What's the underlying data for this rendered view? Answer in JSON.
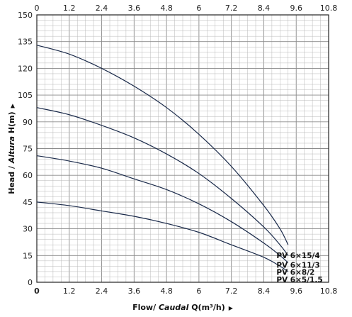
{
  "chart_data": {
    "type": "line",
    "title": "",
    "xlabel_prefix": "Flow/ ",
    "xlabel_italic": "Caudal",
    "xlabel_suffix": " Q(m³/h)",
    "ylabel_prefix": "Head / ",
    "ylabel_italic": "Altura",
    "ylabel_suffix": " H(m)",
    "arrow_glyph": "▶",
    "xlim": [
      0,
      10.8
    ],
    "ylim": [
      0,
      150
    ],
    "x_ticks": [
      "0",
      "1.2",
      "2.4",
      "3.6",
      "4.8",
      "6",
      "7.2",
      "8.4",
      "9.6",
      "10.8"
    ],
    "y_ticks": [
      "0",
      "15",
      "30",
      "45",
      "60",
      "75",
      "90",
      "105",
      "120",
      "135",
      "150"
    ],
    "x_tick_values": [
      0,
      1.2,
      2.4,
      3.6,
      4.8,
      6,
      7.2,
      8.4,
      9.6,
      10.8
    ],
    "y_tick_values": [
      0,
      15,
      30,
      45,
      60,
      75,
      90,
      105,
      120,
      135,
      150
    ],
    "grid": true,
    "grid_minor_x": 0.3,
    "grid_minor_y": 3,
    "curve_color": "#1a2a4a",
    "grid_color": "#b8b8b8",
    "series": [
      {
        "name": "PV 6×15/4",
        "x": [
          0,
          1.2,
          2.4,
          3.6,
          4.8,
          6,
          7.2,
          8.4,
          9.0,
          9.3
        ],
        "y": [
          133,
          128,
          120,
          110,
          98,
          83,
          65,
          43,
          30,
          21
        ]
      },
      {
        "name": "PV 6×11/3",
        "x": [
          0,
          1.2,
          2.4,
          3.6,
          4.8,
          6,
          7.2,
          8.4,
          9.0,
          9.3
        ],
        "y": [
          98,
          94,
          88,
          81,
          72,
          61,
          47,
          31,
          21,
          15
        ]
      },
      {
        "name": "PV 6×8/2",
        "x": [
          0,
          1.2,
          2.4,
          3.6,
          4.8,
          6,
          7.2,
          8.4,
          9.0,
          9.3
        ],
        "y": [
          71,
          68,
          64,
          58,
          52,
          44,
          34,
          22,
          15,
          11
        ]
      },
      {
        "name": "PV 6×5/1.5",
        "x": [
          0,
          1.2,
          2.4,
          3.6,
          4.8,
          6,
          7.2,
          8.4,
          9.0,
          9.3
        ],
        "y": [
          45,
          43,
          40,
          37,
          33,
          28,
          21,
          14,
          9,
          6
        ]
      }
    ]
  }
}
